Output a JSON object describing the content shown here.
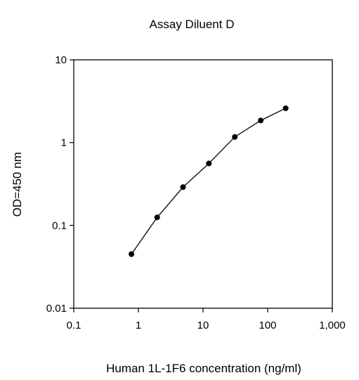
{
  "chart_data": {
    "type": "scatter",
    "title": "Assay Diluent D",
    "xlabel": "Human 1L-1F6 concentration (ng/ml)",
    "ylabel": "OD=450 nm",
    "x_scale": "log",
    "y_scale": "log",
    "xlim": [
      0.1,
      1000
    ],
    "ylim": [
      0.01,
      10
    ],
    "x_ticks": [
      0.1,
      1,
      10,
      100,
      1000
    ],
    "x_tick_labels": [
      "0.1",
      "1",
      "10",
      "100",
      "1,000"
    ],
    "y_ticks": [
      0.01,
      0.1,
      1,
      10
    ],
    "y_tick_labels": [
      "0.01",
      "0.1",
      "1",
      "10"
    ],
    "grid": false,
    "legend": false,
    "series": [
      {
        "x": [
          0.78,
          1.95,
          4.9,
          12.3,
          31,
          78,
          190
        ],
        "y": [
          0.045,
          0.125,
          0.29,
          0.56,
          1.17,
          1.85,
          2.6
        ],
        "marker": "circle",
        "connect": true,
        "color": "#000000"
      }
    ]
  }
}
